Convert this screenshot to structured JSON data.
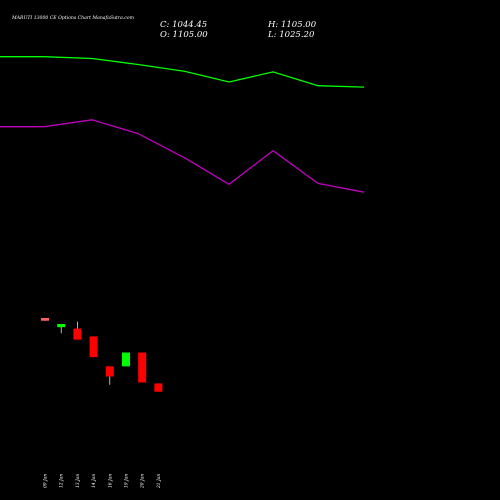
{
  "header": {
    "title": "MARUTI 13000  CE Options  Chart ManafaSutra.com",
    "close_label": "C: 1044.45",
    "open_label": "O: 1105.00",
    "high_label": "H: 1105.00",
    "low_label": "L: 1025.20"
  },
  "colors": {
    "background": "#000000",
    "up": "#00ff00",
    "down": "#ff0000",
    "upper_line": "#00ff00",
    "lower_line": "#c000c0",
    "first_candle": "#ff6060"
  },
  "chart_data": {
    "type": "candlestick",
    "categories": [
      "09 Jan",
      "12 Jan",
      "13 Jan",
      "14 Jan",
      "16 Jan",
      "19 Jan",
      "20 Jan",
      "21 Jan"
    ],
    "candles": [
      {
        "open": 1265,
        "high": 1265,
        "low": 1259,
        "close": 1259
      },
      {
        "open": 1245,
        "high": 1252,
        "low": 1232,
        "close": 1252
      },
      {
        "open": 1242,
        "high": 1257,
        "low": 1218,
        "close": 1218
      },
      {
        "open": 1225,
        "high": 1225,
        "low": 1180,
        "close": 1180
      },
      {
        "open": 1160,
        "high": 1160,
        "low": 1120,
        "close": 1138
      },
      {
        "open": 1160,
        "high": 1190,
        "low": 1160,
        "close": 1190
      },
      {
        "open": 1190,
        "high": 1190,
        "low": 1125,
        "close": 1125
      },
      {
        "open": 1123,
        "high": 1123,
        "low": 1105,
        "close": 1105
      }
    ],
    "lines": [
      {
        "color": "#00ff00",
        "x": [
          0,
          44,
          92,
          138,
          185,
          229,
          273,
          318,
          364
        ],
        "values": [
          1832,
          1832,
          1828,
          1815,
          1800,
          1777,
          1799,
          1769,
          1766
        ]
      },
      {
        "color": "#c000c0",
        "x": [
          0,
          44,
          92,
          138,
          185,
          229,
          273,
          318,
          364
        ],
        "values": [
          1680,
          1680,
          1695,
          1665,
          1612,
          1555,
          1628,
          1557,
          1538
        ]
      }
    ],
    "xlim": [
      0,
      500
    ],
    "ylim": [
      870,
      1955
    ]
  }
}
